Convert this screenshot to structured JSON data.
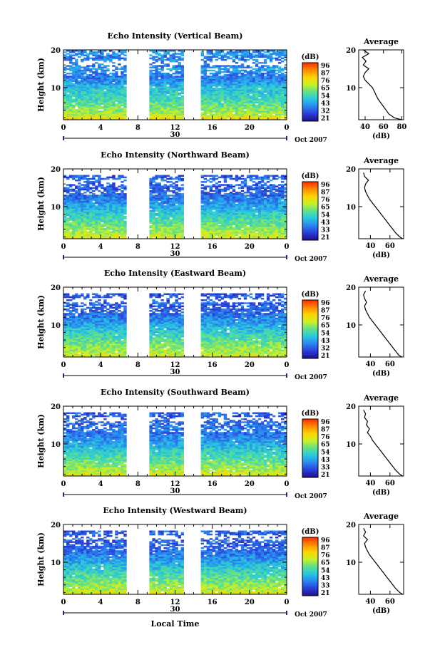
{
  "figure": {
    "xlabel": "Local Time",
    "date_label": "Oct 2007",
    "day_label": "30",
    "colorbar_label": "(dB)",
    "colorbar_ticks_a": [
      "96",
      "87",
      "76",
      "65",
      "54",
      "43",
      "32",
      "21"
    ],
    "colorbar_ticks_b": [
      "96",
      "87",
      "76",
      "65",
      "54",
      "43",
      "33",
      "21"
    ],
    "colorbar_ticks_c": [
      "96",
      "87",
      "76",
      "65",
      "54",
      "43",
      "32",
      "21"
    ],
    "colorbar_ticks_d": [
      "96",
      "87",
      "76",
      "65",
      "54",
      "43",
      "33",
      "21"
    ],
    "colorbar_ticks_e": [
      "96",
      "87",
      "76",
      "65",
      "54",
      "43",
      "33",
      "21"
    ],
    "colorbar_colors": [
      "#ff2a00",
      "#ff8a00",
      "#ffd400",
      "#c8f028",
      "#5ee08a",
      "#27c8e0",
      "#2a86f0",
      "#2a3cd8",
      "#20108c"
    ]
  },
  "chart_data": [
    {
      "type": "heatmap",
      "title": "Echo Intensity (Vertical Beam)",
      "ylabel": "Height (km)",
      "xlabel": "Local Time",
      "x_ticks": [
        "0",
        "4",
        "8",
        "12",
        "16",
        "20",
        "0"
      ],
      "y_ticks": [
        "10",
        "20"
      ],
      "xlim": [
        0,
        24
      ],
      "ylim": [
        1.5,
        20
      ],
      "gaps_hours": [
        [
          6.7,
          9.3
        ],
        [
          13.0,
          14.9
        ]
      ],
      "profile": {
        "title": "Average",
        "xlabel": "(dB)",
        "x_ticks": [
          "40",
          "60",
          "80"
        ],
        "y_ticks": [
          "10",
          "20"
        ],
        "xlim": [
          33,
          82
        ],
        "ylim": [
          1.5,
          20
        ],
        "height_km": [
          1.5,
          2,
          3,
          4,
          5,
          6,
          7,
          8,
          9,
          10,
          11,
          12,
          13,
          14,
          15,
          16,
          17,
          18,
          19,
          20
        ],
        "db": [
          80,
          72,
          66,
          63,
          60,
          57,
          54,
          52,
          50,
          48,
          44,
          40,
          38,
          40,
          44,
          38,
          41,
          37,
          44,
          38
        ]
      }
    },
    {
      "type": "heatmap",
      "title": "Echo Intensity (Northward Beam)",
      "ylabel": "Height (km)",
      "xlabel": "Local Time",
      "x_ticks": [
        "0",
        "4",
        "8",
        "12",
        "16",
        "20",
        "0"
      ],
      "y_ticks": [
        "10",
        "20"
      ],
      "xlim": [
        0,
        24
      ],
      "ylim": [
        1.5,
        20
      ],
      "gaps_hours": [
        [
          6.7,
          9.3
        ],
        [
          13.0,
          14.9
        ]
      ],
      "profile": {
        "title": "Average",
        "xlabel": "(dB)",
        "x_ticks": [
          "40",
          "60"
        ],
        "y_ticks": [
          "10",
          "20"
        ],
        "xlim": [
          28,
          74
        ],
        "ylim": [
          1.5,
          20
        ],
        "height_km": [
          1.5,
          2,
          3,
          4,
          5,
          6,
          7,
          8,
          9,
          10,
          11,
          12,
          13,
          14,
          15,
          16,
          17,
          18,
          19
        ],
        "db": [
          73,
          70,
          66,
          63,
          60,
          57,
          54,
          51,
          48,
          45,
          42,
          39,
          37,
          35,
          34,
          35,
          38,
          34,
          33
        ]
      }
    },
    {
      "type": "heatmap",
      "title": "Echo Intensity (Eastward Beam)",
      "ylabel": "Height (km)",
      "xlabel": "Local Time",
      "x_ticks": [
        "0",
        "4",
        "8",
        "12",
        "16",
        "20",
        "0"
      ],
      "y_ticks": [
        "10",
        "20"
      ],
      "xlim": [
        0,
        24
      ],
      "ylim": [
        1.5,
        20
      ],
      "gaps_hours": [
        [
          6.7,
          9.3
        ],
        [
          13.0,
          14.9
        ]
      ],
      "profile": {
        "title": "Average",
        "xlabel": "(dB)",
        "x_ticks": [
          "40",
          "60"
        ],
        "y_ticks": [
          "10",
          "20"
        ],
        "xlim": [
          28,
          74
        ],
        "ylim": [
          1.5,
          20
        ],
        "height_km": [
          1.5,
          2,
          3,
          4,
          5,
          6,
          7,
          8,
          9,
          10,
          11,
          12,
          13,
          14,
          15,
          16,
          17,
          18,
          19
        ],
        "db": [
          72,
          69,
          66,
          63,
          60,
          57,
          54,
          51,
          48,
          45,
          42,
          39,
          37,
          35,
          34,
          36,
          34,
          33,
          35
        ]
      }
    },
    {
      "type": "heatmap",
      "title": "Echo Intensity (Southward Beam)",
      "ylabel": "Height (km)",
      "xlabel": "Local Time",
      "x_ticks": [
        "0",
        "4",
        "8",
        "12",
        "16",
        "20",
        "0"
      ],
      "y_ticks": [
        "10",
        "20"
      ],
      "xlim": [
        0,
        24
      ],
      "ylim": [
        1.5,
        20
      ],
      "gaps_hours": [
        [
          6.7,
          9.3
        ],
        [
          13.0,
          14.9
        ]
      ],
      "profile": {
        "title": "Average",
        "xlabel": "(dB)",
        "x_ticks": [
          "40",
          "60"
        ],
        "y_ticks": [
          "10",
          "20"
        ],
        "xlim": [
          28,
          74
        ],
        "ylim": [
          1.5,
          20
        ],
        "height_km": [
          1.5,
          2,
          3,
          4,
          5,
          6,
          7,
          8,
          9,
          10,
          11,
          12,
          13,
          14,
          15,
          16,
          17,
          18,
          19
        ],
        "db": [
          73,
          70,
          66,
          63,
          60,
          57,
          54,
          51,
          48,
          45,
          42,
          40,
          37,
          39,
          36,
          37,
          34,
          35,
          33
        ]
      }
    },
    {
      "type": "heatmap",
      "title": "Echo Intensity (Westward Beam)",
      "ylabel": "Height (km)",
      "xlabel": "Local Time",
      "x_ticks": [
        "0",
        "4",
        "8",
        "12",
        "16",
        "20",
        "0"
      ],
      "y_ticks": [
        "10",
        "20"
      ],
      "xlim": [
        0,
        24
      ],
      "ylim": [
        1.5,
        20
      ],
      "gaps_hours": [
        [
          6.7,
          9.3
        ],
        [
          13.0,
          14.9
        ]
      ],
      "profile": {
        "title": "Average",
        "xlabel": "(dB)",
        "x_ticks": [
          "40",
          "60"
        ],
        "y_ticks": [
          "10",
          "20"
        ],
        "xlim": [
          28,
          74
        ],
        "ylim": [
          1.5,
          20
        ],
        "height_km": [
          1.5,
          2,
          3,
          4,
          5,
          6,
          7,
          8,
          9,
          10,
          11,
          12,
          13,
          14,
          15,
          16,
          17,
          18,
          19
        ],
        "db": [
          73,
          70,
          66,
          63,
          60,
          57,
          54,
          51,
          48,
          45,
          42,
          39,
          37,
          35,
          34,
          37,
          33,
          35,
          33
        ]
      }
    }
  ]
}
